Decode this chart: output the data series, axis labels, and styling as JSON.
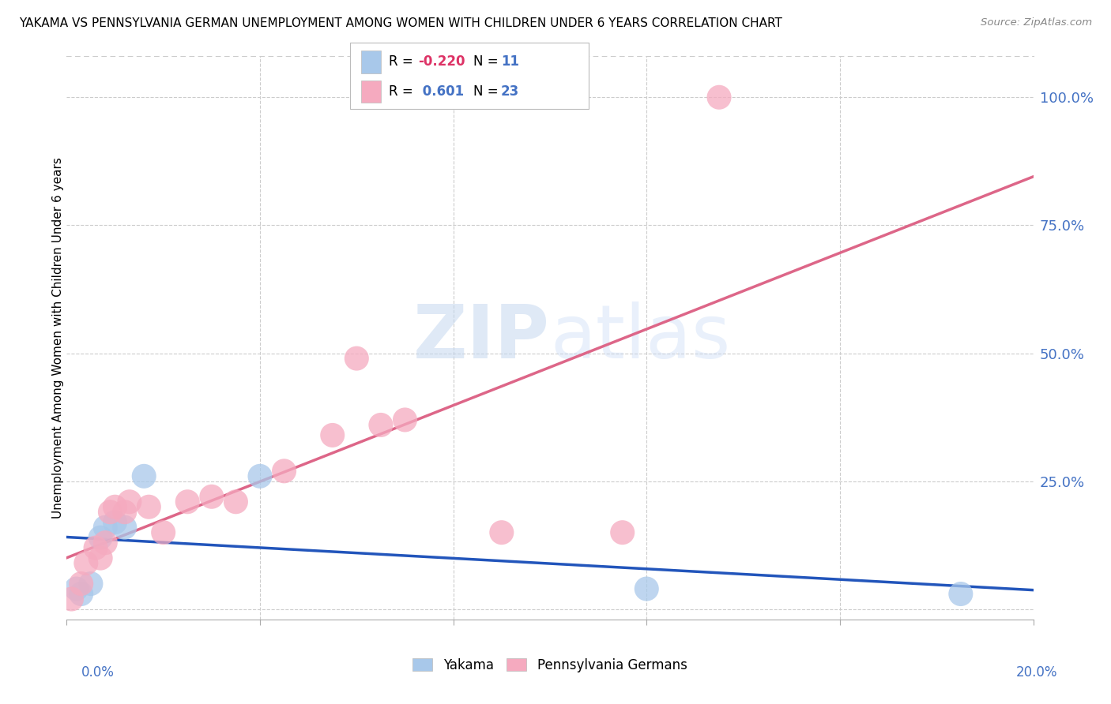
{
  "title": "YAKAMA VS PENNSYLVANIA GERMAN UNEMPLOYMENT AMONG WOMEN WITH CHILDREN UNDER 6 YEARS CORRELATION CHART",
  "source": "Source: ZipAtlas.com",
  "ylabel": "Unemployment Among Women with Children Under 6 years",
  "xlim": [
    0.0,
    0.2
  ],
  "ylim": [
    -0.02,
    1.08
  ],
  "yakama_R": "-0.220",
  "yakama_N": "11",
  "pennger_R": "0.601",
  "pennger_N": "23",
  "yakama_color": "#a8c8ea",
  "yakama_line_color": "#2255bb",
  "pennger_color": "#f5aabf",
  "pennger_line_color": "#dd6688",
  "watermark_color": "#c5d8f0",
  "legend_label1": "Yakama",
  "legend_label2": "Pennsylvania Germans",
  "yakama_points": [
    [
      0.002,
      0.04
    ],
    [
      0.003,
      0.03
    ],
    [
      0.005,
      0.05
    ],
    [
      0.007,
      0.14
    ],
    [
      0.008,
      0.16
    ],
    [
      0.01,
      0.17
    ],
    [
      0.012,
      0.16
    ],
    [
      0.016,
      0.26
    ],
    [
      0.04,
      0.26
    ],
    [
      0.12,
      0.04
    ],
    [
      0.185,
      0.03
    ]
  ],
  "pennger_points": [
    [
      0.001,
      0.02
    ],
    [
      0.003,
      0.05
    ],
    [
      0.004,
      0.09
    ],
    [
      0.006,
      0.12
    ],
    [
      0.007,
      0.1
    ],
    [
      0.008,
      0.13
    ],
    [
      0.009,
      0.19
    ],
    [
      0.01,
      0.2
    ],
    [
      0.012,
      0.19
    ],
    [
      0.013,
      0.21
    ],
    [
      0.017,
      0.2
    ],
    [
      0.02,
      0.15
    ],
    [
      0.025,
      0.21
    ],
    [
      0.03,
      0.22
    ],
    [
      0.035,
      0.21
    ],
    [
      0.045,
      0.27
    ],
    [
      0.055,
      0.34
    ],
    [
      0.06,
      0.49
    ],
    [
      0.065,
      0.36
    ],
    [
      0.07,
      0.37
    ],
    [
      0.09,
      0.15
    ],
    [
      0.115,
      0.15
    ],
    [
      0.135,
      1.0
    ]
  ]
}
